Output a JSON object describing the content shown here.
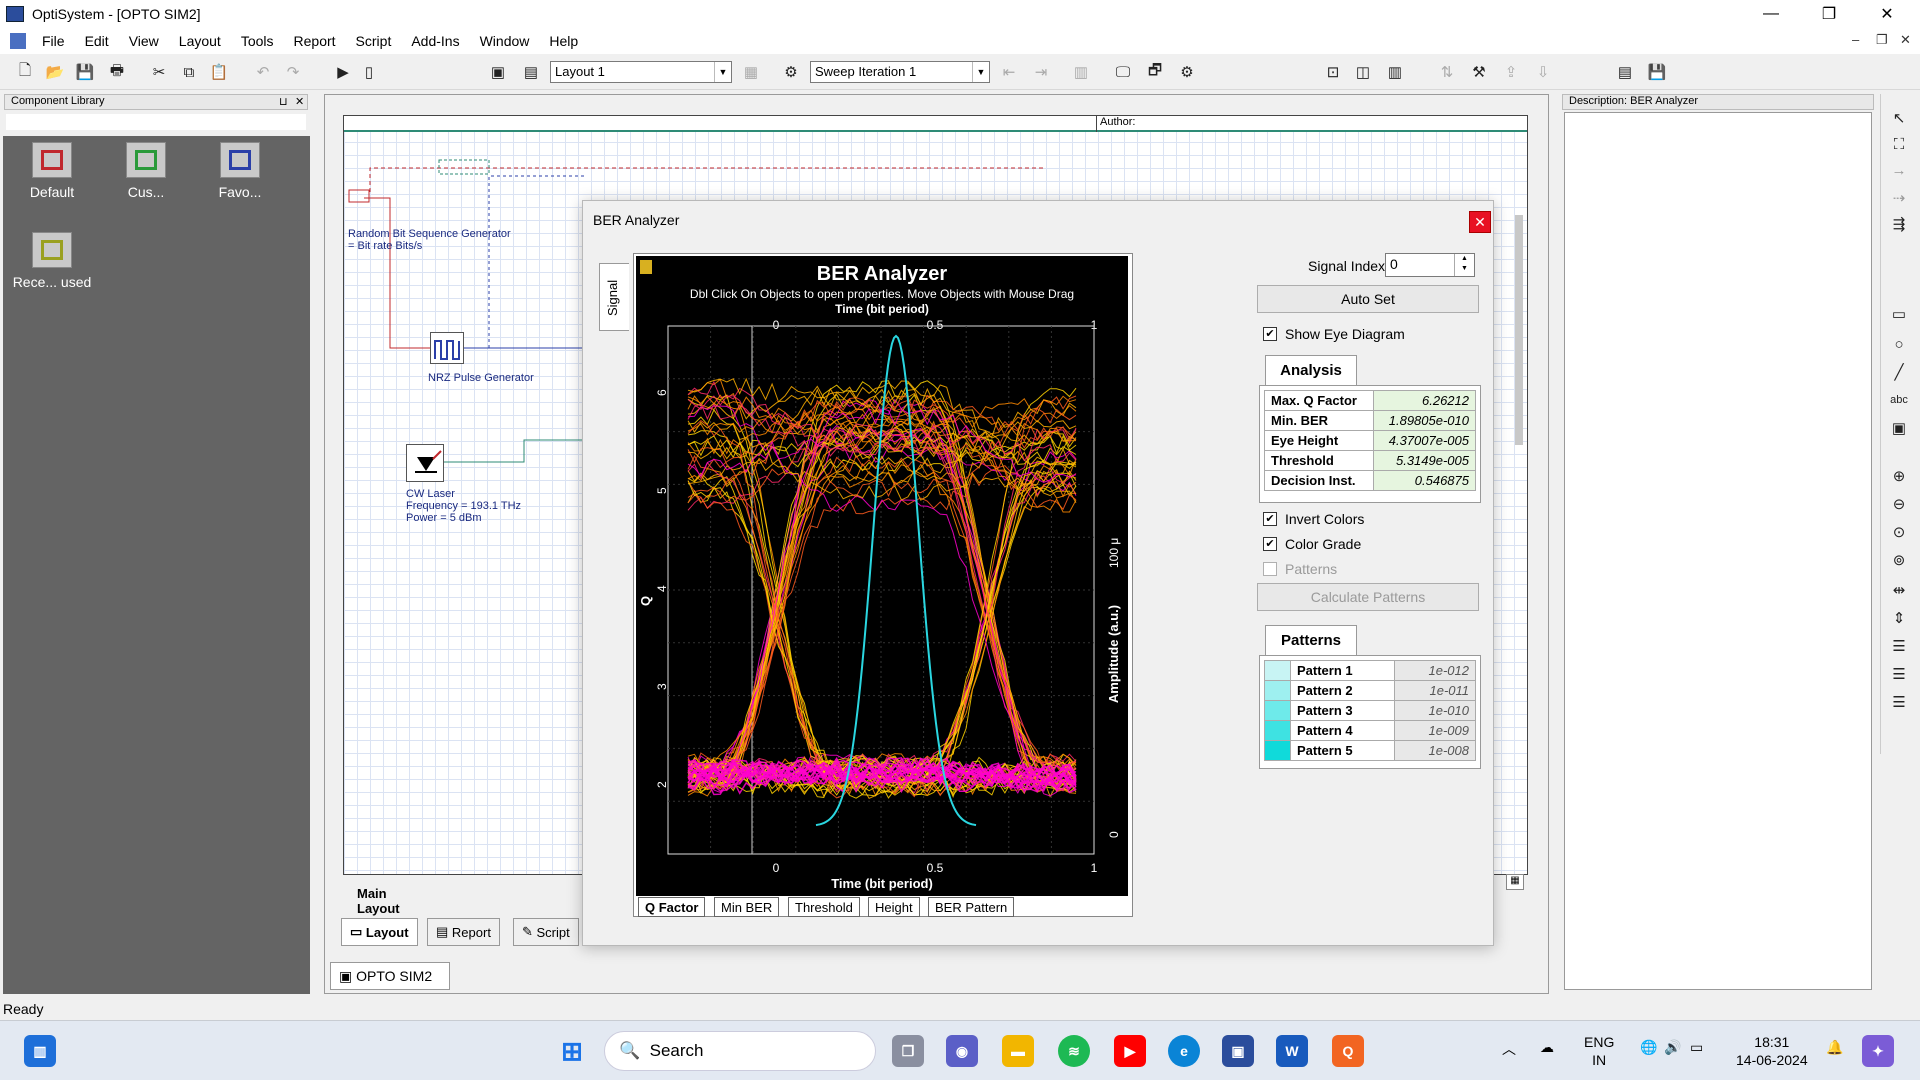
{
  "window": {
    "title": "OptiSystem - [OPTO SIM2]",
    "minimize": "—",
    "maximize": "❐",
    "close": "✕"
  },
  "menu": [
    "File",
    "Edit",
    "View",
    "Layout",
    "Tools",
    "Report",
    "Script",
    "Add-Ins",
    "Window",
    "Help"
  ],
  "mdi_controls": [
    "–",
    "❐",
    "✕"
  ],
  "toolbar": {
    "layout_select": "Layout 1",
    "sweep_select": "Sweep Iteration 1"
  },
  "component_library": {
    "title": "Component Library",
    "folders": [
      {
        "label": "Default",
        "color": "#c0282d"
      },
      {
        "label": "Cus...",
        "color": "#2a9a3a"
      },
      {
        "label": "Favo...",
        "color": "#2b3fa8"
      },
      {
        "label": "Rece... used",
        "color": "#9aa020"
      }
    ]
  },
  "canvas": {
    "author_label": "Author:",
    "components": {
      "bit_seq": "Random Bit Sequence Generator",
      "bit_rate": "= Bit rate  Bits/s",
      "nrz": "NRZ Pulse Generator",
      "cw_laser": "CW Laser",
      "cw_freq": "Frequency = 193.1  THz",
      "cw_power": "Power = 5  dBm"
    },
    "tabs": {
      "main_layout": "Main Layout",
      "layout": "Layout",
      "report": "Report",
      "script": "Script"
    },
    "doc_tab": "OPTO SIM2"
  },
  "description_panel": {
    "title": "Description: BER Analyzer"
  },
  "dialog": {
    "title": "BER Analyzer",
    "side_tab": "Signal",
    "plot": {
      "title": "BER Analyzer",
      "subtitle": "Dbl Click On Objects to open properties.  Move Objects with Mouse Drag",
      "x_label_top": "Time (bit period)",
      "x_label_bottom": "Time (bit period)",
      "y_label_left": "Q",
      "y_label_right": "Amplitude (a.u.)",
      "x_ticks": [
        "0",
        "0.5",
        "1"
      ],
      "q_ticks": [
        "6",
        "5",
        "4",
        "3",
        "2"
      ],
      "amp_ticks": [
        "100 μ",
        "0"
      ]
    },
    "plot_tabs": [
      "Q Factor",
      "Min BER",
      "Threshold",
      "Height",
      "BER Pattern"
    ],
    "signal_index_label": "Signal Index:",
    "signal_index_value": "0",
    "auto_set": "Auto Set",
    "show_eye_diagram": "Show Eye Diagram",
    "analysis_title": "Analysis",
    "analysis": [
      {
        "key": "Max. Q Factor",
        "value": "6.26212"
      },
      {
        "key": "Min. BER",
        "value": "1.89805e-010"
      },
      {
        "key": "Eye Height",
        "value": "4.37007e-005"
      },
      {
        "key": "Threshold",
        "value": "5.3149e-005"
      },
      {
        "key": "Decision Inst.",
        "value": "0.546875"
      }
    ],
    "invert_colors": "Invert Colors",
    "color_grade": "Color Grade",
    "patterns_check": "Patterns",
    "calculate_patterns": "Calculate Patterns",
    "patterns_title": "Patterns",
    "patterns": [
      {
        "name": "Pattern 1",
        "value": "1e-012",
        "color": "#c8f4f4"
      },
      {
        "name": "Pattern 2",
        "value": "1e-011",
        "color": "#9ef0f0"
      },
      {
        "name": "Pattern 3",
        "value": "1e-010",
        "color": "#6eeaea"
      },
      {
        "name": "Pattern 4",
        "value": "1e-009",
        "color": "#3ee2e2"
      },
      {
        "name": "Pattern 5",
        "value": "1e-008",
        "color": "#10dada"
      }
    ]
  },
  "status_text": "Ready",
  "taskbar": {
    "search": "Search",
    "lang_1": "ENG",
    "lang_2": "IN",
    "time": "18:31",
    "date": "14-06-2024"
  }
}
